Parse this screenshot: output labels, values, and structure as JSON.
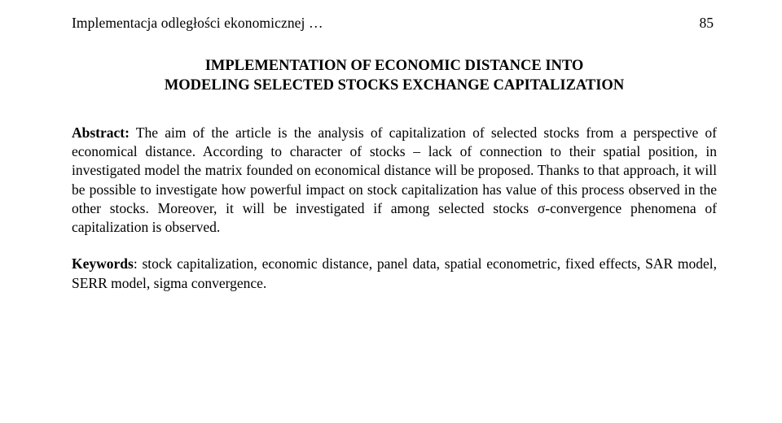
{
  "runningHead": {
    "left": "Implementacja odległości ekonomicznej …",
    "pageNumber": "85"
  },
  "title": {
    "line1": "IMPLEMENTATION OF ECONOMIC DISTANCE INTO",
    "line2": "MODELING SELECTED STOCKS EXCHANGE CAPITALIZATION"
  },
  "abstract": {
    "label": "Abstract:",
    "text": " The aim of the article is the analysis of capitalization of selected stocks from a perspective of economical distance. According to character of stocks – lack of connection to their spatial position, in investigated model the matrix founded on economical distance will be proposed. Thanks to that approach, it will be possible to investigate how powerful impact on stock capitalization has value of this process observed in the other stocks. Moreover, it will be investigated if among selected stocks σ-convergence phenomena of capitalization is observed."
  },
  "keywords": {
    "label": "Keywords",
    "text": ": stock capitalization, economic distance, panel data, spatial econometric, fixed effects, SAR model, SERR model, sigma convergence."
  },
  "style": {
    "background": "#ffffff",
    "textColor": "#000000",
    "fontFamily": "Times New Roman",
    "bodyFontSizePt": 13,
    "titleFontSizePt": 14,
    "lineHeight": 1.33,
    "pageWidthPx": 960,
    "pageHeightPx": 520
  }
}
